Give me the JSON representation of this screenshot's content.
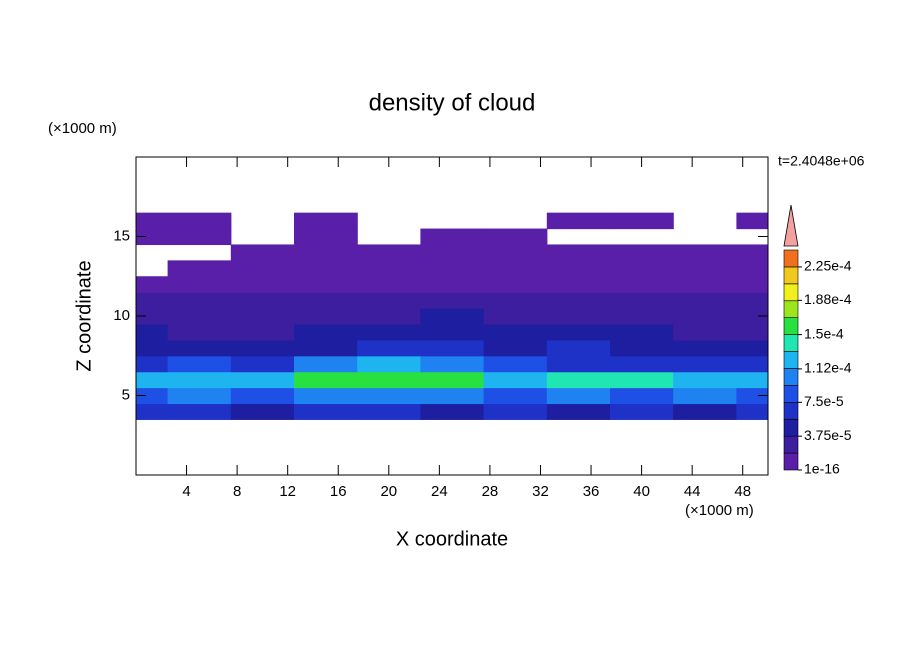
{
  "chart_data": {
    "type": "contour",
    "title": "density of cloud",
    "time_label": "t=2.4048e+06",
    "xlabel": "X coordinate",
    "ylabel": "Z coordinate",
    "x_unit": "(×1000 m)",
    "y_unit": "(×1000 m)",
    "xlim": [
      0,
      50
    ],
    "ylim": [
      0,
      20
    ],
    "xticks": [
      4,
      8,
      12,
      16,
      20,
      24,
      28,
      32,
      36,
      40,
      44,
      48
    ],
    "yticks": [
      5,
      10,
      15
    ],
    "field": {
      "x": [
        0,
        5,
        10,
        15,
        20,
        25,
        30,
        35,
        40,
        45,
        50
      ],
      "z": [
        4,
        5,
        6,
        7,
        8,
        9,
        10,
        11,
        12,
        13,
        14,
        15,
        16
      ],
      "values": [
        [
          6e-05,
          6e-05,
          5e-05,
          6e-05,
          6e-05,
          5e-05,
          6e-05,
          5e-05,
          6e-05,
          5e-05,
          6e-05
        ],
        [
          9e-05,
          0.0001,
          9e-05,
          0.0001,
          0.000105,
          0.0001,
          9e-05,
          0.0001,
          9e-05,
          0.0001,
          9e-05
        ],
        [
          0.00013,
          0.000125,
          0.00012,
          0.00015,
          0.000165,
          0.000155,
          0.00013,
          0.00014,
          0.000135,
          0.00013,
          0.000125
        ],
        [
          7e-05,
          8e-05,
          6e-05,
          0.0001,
          0.00012,
          0.000105,
          8e-05,
          7e-05,
          7e-05,
          6e-05,
          6e-05
        ],
        [
          5e-05,
          4.5e-05,
          4e-05,
          5.5e-05,
          7e-05,
          6.5e-05,
          5e-05,
          6e-05,
          5e-05,
          4.5e-05,
          4e-05
        ],
        [
          4e-05,
          3.5e-05,
          3e-05,
          4e-05,
          4.5e-05,
          5e-05,
          4e-05,
          4.5e-05,
          4e-05,
          3.5e-05,
          3.5e-05
        ],
        [
          3e-05,
          2.5e-05,
          2.5e-05,
          3e-05,
          3.5e-05,
          4e-05,
          3e-05,
          3.5e-05,
          3e-05,
          3e-05,
          2.5e-05
        ],
        [
          2e-05,
          2e-05,
          2e-05,
          2e-05,
          2e-05,
          2.5e-05,
          2e-05,
          2.5e-05,
          2e-05,
          2e-05,
          2e-05
        ],
        [
          1e-05,
          1.5e-05,
          1.5e-05,
          1.5e-05,
          1.5e-05,
          1.5e-05,
          1.5e-05,
          1.5e-05,
          1.5e-05,
          1.5e-05,
          1.5e-05
        ],
        [
          null,
          1e-05,
          1e-05,
          1e-05,
          1e-05,
          1e-05,
          1e-05,
          1e-05,
          1e-05,
          1e-05,
          1e-05
        ],
        [
          null,
          null,
          1e-05,
          1e-05,
          1e-05,
          1e-05,
          1e-05,
          1e-05,
          1e-05,
          1e-05,
          1e-05
        ],
        [
          1e-05,
          1e-05,
          null,
          1e-05,
          null,
          1e-05,
          1e-05,
          null,
          null,
          null,
          null
        ],
        [
          1e-05,
          1e-05,
          null,
          1e-05,
          null,
          null,
          null,
          1e-05,
          1e-05,
          null,
          1e-05
        ]
      ]
    },
    "levels": [
      1e-16,
      1.875e-05,
      3.75e-05,
      5.625e-05,
      7.5e-05,
      9.375e-05,
      0.0001125,
      0.00013125,
      0.00015,
      0.00016875,
      0.0001875,
      0.00020625,
      0.000225,
      0.00024375
    ],
    "colors": [
      "#5a1fa8",
      "#3c1e9e",
      "#1e1ea0",
      "#1e32c8",
      "#1e50e6",
      "#1e82f0",
      "#1eb4f0",
      "#20e6b4",
      "#28e040",
      "#9ce620",
      "#f0f01e",
      "#f0c81e",
      "#f07020",
      "#e82820"
    ],
    "extend_color": "#f4a0a0",
    "colorbar_ticks": [
      1e-16,
      {
        "value": 3.75e-05,
        "label": "3.75e-5"
      },
      {
        "value": 7.5e-05,
        "label": "7.5e-5"
      },
      {
        "value": 0.000112,
        "label": "1.12e-4"
      },
      {
        "value": 0.00015,
        "label": "1.5e-4"
      },
      {
        "value": 0.000188,
        "label": "1.88e-4"
      },
      {
        "value": 0.000225,
        "label": "2.25e-4"
      }
    ]
  }
}
